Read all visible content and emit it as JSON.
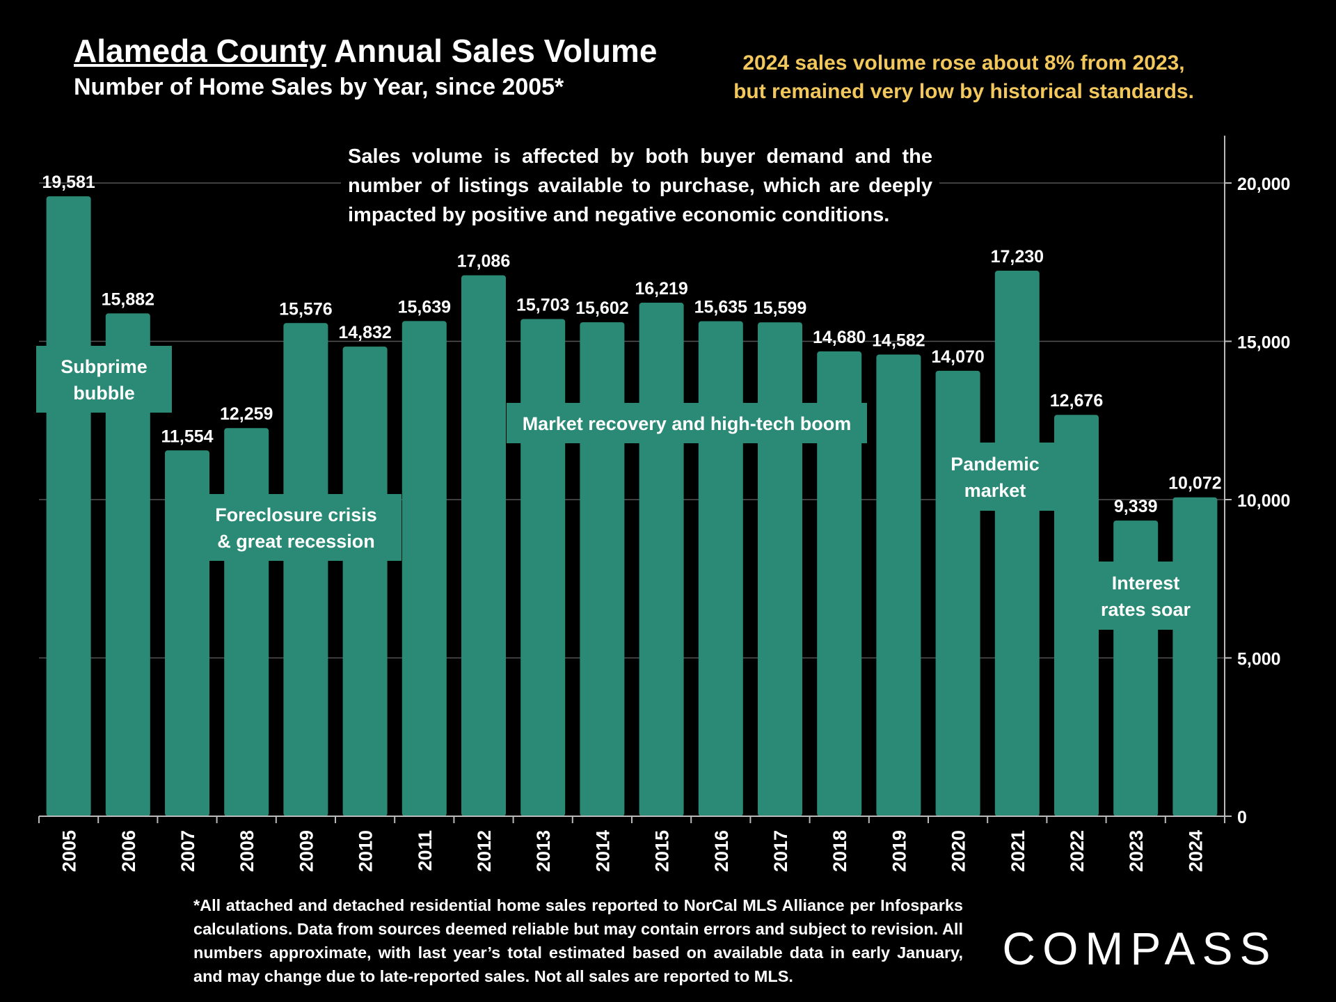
{
  "header": {
    "title_underlined": "Alameda County",
    "title_rest": " Annual Sales Volume",
    "subtitle": "Number of Home Sales by Year, since 2005*"
  },
  "callout": {
    "line1": "2024 sales volume rose about 8% from 2023,",
    "line2": "but remained very low by historical standards."
  },
  "note": "Sales volume is affected by both buyer demand and the number of listings available to purchase, which are deeply impacted by positive and negative economic conditions.",
  "footnote": "*All attached and detached residential home sales reported to NorCal MLS Alliance per Infosparks calculations. Data from sources deemed reliable but may contain errors and subject to revision. All numbers approximate, with last year’s total estimated based on available data in early January, and may change due to late-reported sales. Not all sales are reported to MLS.",
  "logo": {
    "text": "COMPASS"
  },
  "colors": {
    "bar": "#2a8a76",
    "background": "#000000",
    "callout": "#f2c75c",
    "text": "#ffffff",
    "grid": "#555555"
  },
  "chart_data": {
    "type": "bar",
    "categories": [
      "2005",
      "2006",
      "2007",
      "2008",
      "2009",
      "2010",
      "2011",
      "2012",
      "2013",
      "2014",
      "2015",
      "2016",
      "2017",
      "2018",
      "2019",
      "2020",
      "2021",
      "2022",
      "2023",
      "2024"
    ],
    "values": [
      19581,
      15882,
      11554,
      12259,
      15576,
      14832,
      15639,
      17086,
      15703,
      15602,
      16219,
      15635,
      15599,
      14680,
      14582,
      14070,
      17230,
      12676,
      9339,
      10072
    ],
    "data_labels": [
      "19,581",
      "15,882",
      "11,554",
      "12,259",
      "15,576",
      "14,832",
      "15,639",
      "17,086",
      "15,703",
      "15,602",
      "16,219",
      "15,635",
      "15,599",
      "14,680",
      "14,582",
      "14,070",
      "17,230",
      "12,676",
      "9,339",
      "10,072"
    ],
    "ylim": [
      0,
      21500
    ],
    "yticks": [
      0,
      5000,
      10000,
      15000,
      20000
    ],
    "ytick_labels": [
      "0",
      "5,000",
      "10,000",
      "15,000",
      "20,000"
    ],
    "y_axis_side": "right",
    "grid": true,
    "annotations": [
      {
        "lines": [
          "Subprime",
          "bubble"
        ]
      },
      {
        "lines": [
          "Foreclosure crisis",
          "& great recession"
        ]
      },
      {
        "lines": [
          "Market recovery and high-tech boom"
        ]
      },
      {
        "lines": [
          "Pandemic",
          "market"
        ]
      },
      {
        "lines": [
          "Interest",
          "rates soar"
        ]
      }
    ]
  }
}
